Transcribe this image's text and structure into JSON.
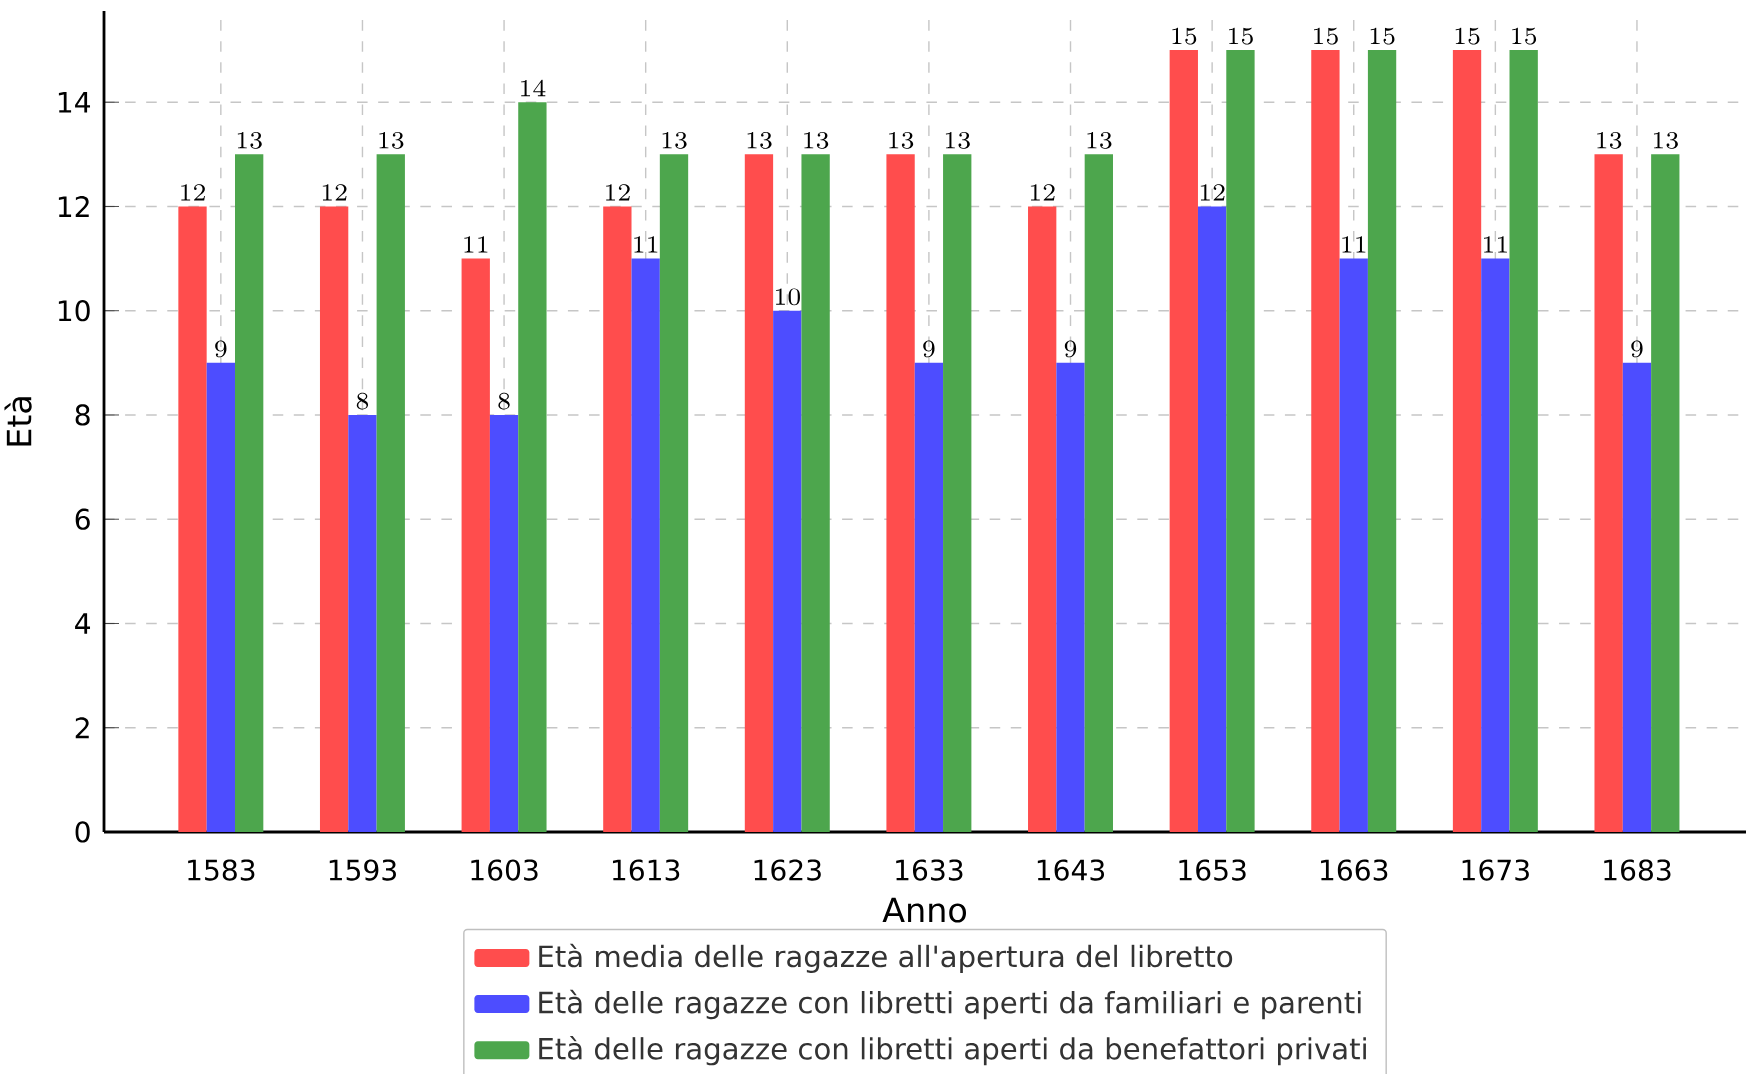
{
  "chart_data": {
    "type": "bar",
    "xlabel": "Anno",
    "ylabel": "Età",
    "categories": [
      "1583",
      "1593",
      "1603",
      "1613",
      "1623",
      "1633",
      "1643",
      "1653",
      "1663",
      "1673",
      "1683"
    ],
    "series": [
      {
        "name": "Età media delle ragazze all'apertura del libretto",
        "color": "#ff4d4d",
        "values": [
          12,
          12,
          11,
          12,
          13,
          13,
          12,
          15,
          15,
          15,
          13
        ]
      },
      {
        "name": "Età delle ragazze con libretti aperti da familiari e parenti",
        "color": "#4d4dff",
        "values": [
          9,
          8,
          8,
          11,
          10,
          9,
          9,
          12,
          11,
          11,
          9
        ]
      },
      {
        "name": "Età delle ragazze con libretti aperti da benefattori privati",
        "color": "#4da64d",
        "values": [
          13,
          13,
          14,
          13,
          13,
          13,
          13,
          15,
          15,
          15,
          13
        ]
      }
    ],
    "ylim": [
      0,
      15.75
    ],
    "yticks": [
      0,
      2,
      4,
      6,
      8,
      10,
      12,
      14
    ],
    "grid": true,
    "legend": "bottom",
    "data_labels": true
  }
}
